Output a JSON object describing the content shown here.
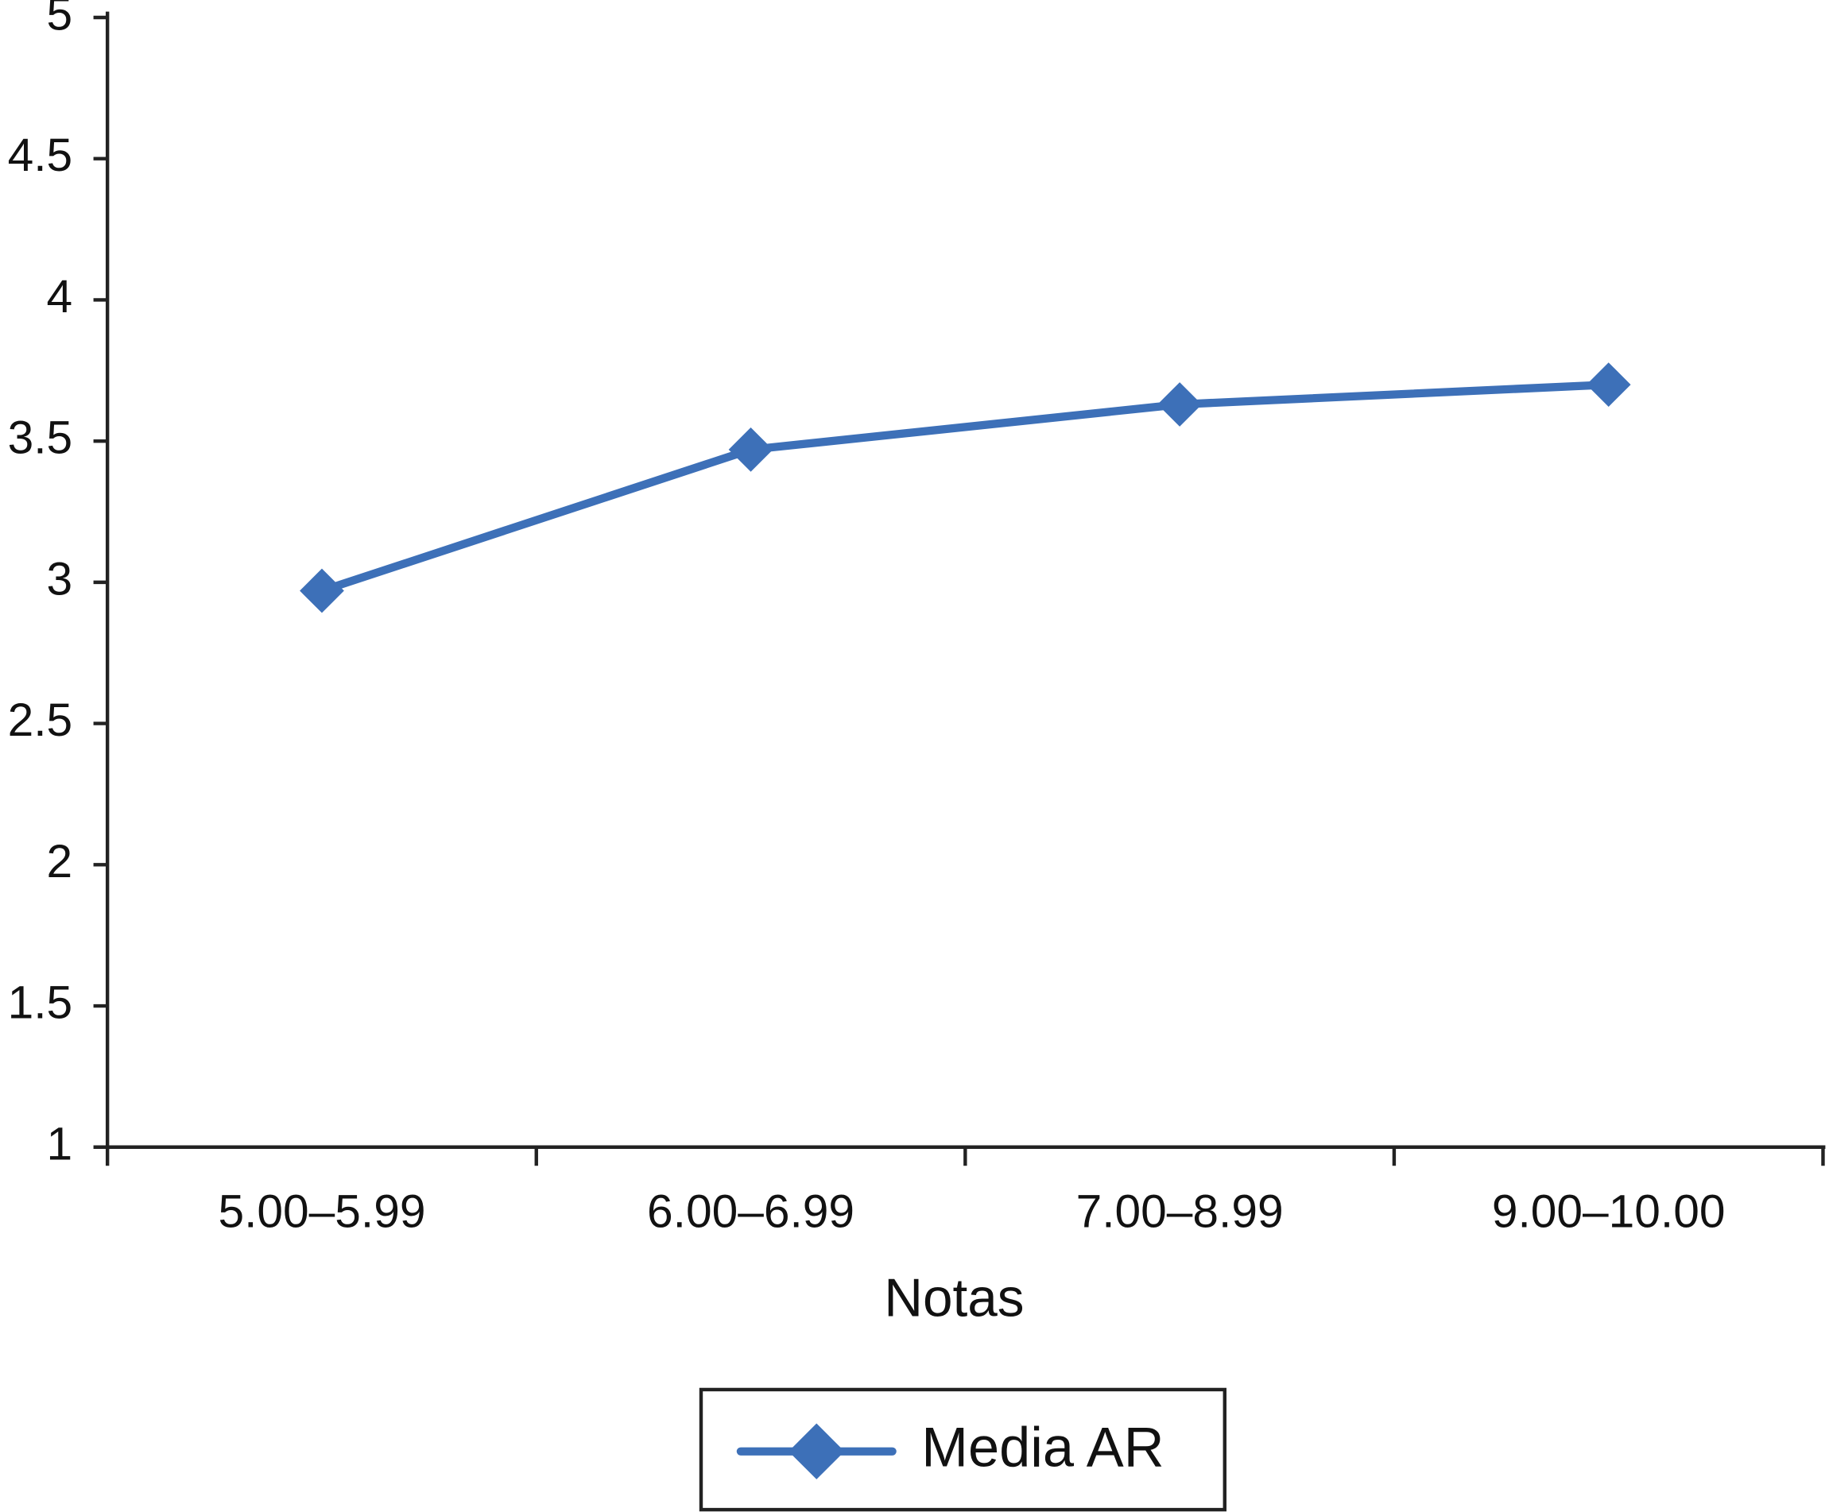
{
  "chart_data": {
    "type": "line",
    "x_label": "Notas",
    "categories": [
      "5.00–5.99",
      "6.00–6.99",
      "7.00–8.99",
      "9.00–10.00"
    ],
    "series": [
      {
        "name": "Media AR",
        "color": "#3d70b8",
        "values": [
          2.97,
          3.47,
          3.63,
          3.7
        ]
      }
    ],
    "ylim": [
      1,
      5
    ],
    "yticks": [
      1,
      1.5,
      2,
      2.5,
      3,
      3.5,
      4,
      4.5,
      5
    ],
    "grid": false,
    "legend": "bottom"
  }
}
